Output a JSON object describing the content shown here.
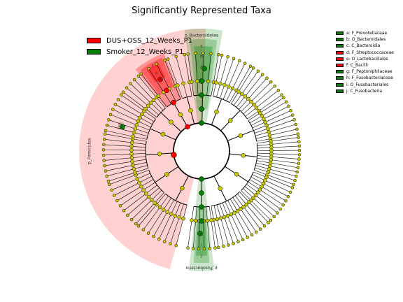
{
  "title": "Significantly Represented Taxa",
  "colors": {
    "group1": "#ff0000",
    "group2": "#008000",
    "node": "#c8c800",
    "background_sector": "#ffcccc"
  },
  "groups": [
    {
      "name": "DUS+OSS_12_Weeks_P1",
      "color": "#ff0000"
    },
    {
      "name": "Smoker_12_Weeks_P1",
      "color": "#008000"
    }
  ],
  "taxa": [
    {
      "label": "a: F_Prevotellaceae",
      "color": "#008000"
    },
    {
      "label": "b: O_Bacteroidales",
      "color": "#008000"
    },
    {
      "label": "c: C_Bacteroidia",
      "color": "#008000"
    },
    {
      "label": "d: F_Streptococcaceae",
      "color": "#ff0000"
    },
    {
      "label": "e: O_Lactobacillales",
      "color": "#ff0000"
    },
    {
      "label": "f: C_Bacilli",
      "color": "#ff0000"
    },
    {
      "label": "g: F_Peptoniphilaceae",
      "color": "#008000"
    },
    {
      "label": "h: F_Fusobacteriaceae",
      "color": "#008000"
    },
    {
      "label": "i: O_Fusobacteriales",
      "color": "#008000"
    },
    {
      "label": "j: C_Fusobacteria",
      "color": "#008000"
    }
  ],
  "clade_labels": {
    "bacteroidetes": "p_Bacteroidetes",
    "firmicutes": "p_Firmicutes",
    "fusobacteria": "p_Fusobacteria",
    "a": "a",
    "b": "b",
    "c": "c",
    "d": "d",
    "e": "e",
    "f": "f",
    "g": "g",
    "h": "h",
    "i": "i",
    "j": "j"
  }
}
